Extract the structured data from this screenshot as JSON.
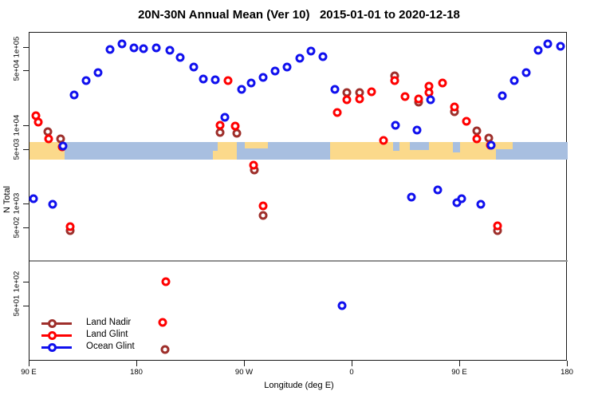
{
  "chart_data": {
    "type": "scatter",
    "title": "20N-30N Annual Mean (Ver 10)   2015-01-01 to 2020-12-18",
    "xlabel": "Longitude (deg E)",
    "ylabel": "N Total",
    "x_axis": {
      "range": [
        90,
        540
      ],
      "ticks": [
        {
          "lon": 90,
          "label": "90 E"
        },
        {
          "lon": 180,
          "label": "180"
        },
        {
          "lon": 270,
          "label": "90 W"
        },
        {
          "lon": 360,
          "label": "0"
        },
        {
          "lon": 450,
          "label": "90 E"
        },
        {
          "lon": 540,
          "label": "180"
        }
      ]
    },
    "y_axis": {
      "scale": "log",
      "range": [
        9.8,
        156000
      ],
      "ticks": [
        {
          "value": 100000,
          "label": "1e+05"
        },
        {
          "value": 50000,
          "label": "5e+04"
        },
        {
          "value": 10000,
          "label": "1e+04"
        },
        {
          "value": 5000,
          "label": "5e+03"
        },
        {
          "value": 1000,
          "label": "1e+03"
        },
        {
          "value": 500,
          "label": "5e+02"
        },
        {
          "value": 100,
          "label": "1e+02"
        },
        {
          "value": 50,
          "label": "5e+01"
        }
      ]
    },
    "separator_value": 193,
    "map_band": {
      "lat_range": "20N-30N",
      "value_top": 6250,
      "value_bottom": 3720,
      "ocean_color": "#A8BFE0",
      "land_color": "#FBD98B",
      "land_patches": [
        {
          "from": 90,
          "to": 119,
          "frac_top": 0,
          "frac_h": 1
        },
        {
          "from": 243,
          "to": 263,
          "frac_top": 0,
          "frac_h": 1
        },
        {
          "from": 270,
          "to": 289,
          "frac_top": 0,
          "frac_h": 0.35
        },
        {
          "from": 341,
          "to": 480,
          "frac_top": 0,
          "frac_h": 1
        },
        {
          "from": 480,
          "to": 494,
          "frac_top": 0,
          "frac_h": 0.4
        }
      ],
      "ocean_notches": [
        {
          "from": 243,
          "to": 247,
          "frac_top": 0,
          "frac_h": 0.5
        },
        {
          "from": 394,
          "to": 399,
          "frac_top": 0,
          "frac_h": 0.5
        },
        {
          "from": 408,
          "to": 424,
          "frac_top": 0,
          "frac_h": 0.45
        },
        {
          "from": 444,
          "to": 450,
          "frac_top": 0,
          "frac_h": 0.6
        }
      ]
    },
    "series": [
      {
        "name": "Land Nadir",
        "color": "#9E2F2B",
        "points": [
          [
            105,
            8500
          ],
          [
            116,
            6900
          ],
          [
            249,
            8300
          ],
          [
            263,
            8100
          ],
          [
            278,
            2750
          ],
          [
            355,
            26500
          ],
          [
            366,
            27000
          ],
          [
            395,
            44000
          ],
          [
            415,
            20400
          ],
          [
            445,
            15200
          ],
          [
            464,
            8700
          ],
          [
            474,
            7000
          ],
          [
            124,
            460
          ],
          [
            285,
            720
          ],
          [
            481,
            460
          ],
          [
            203,
            14
          ]
        ]
      },
      {
        "name": "Land Glint",
        "color": "#FF0000",
        "points": [
          [
            95,
            13600
          ],
          [
            97,
            11300
          ],
          [
            106,
            6900
          ],
          [
            117,
            5400
          ],
          [
            124,
            513
          ],
          [
            201,
            31
          ],
          [
            204,
            103
          ],
          [
            249,
            10200
          ],
          [
            256,
            38000
          ],
          [
            262,
            10000
          ],
          [
            277,
            3170
          ],
          [
            285,
            950
          ],
          [
            347,
            14900
          ],
          [
            355,
            21700
          ],
          [
            366,
            22300
          ],
          [
            376,
            27500
          ],
          [
            386,
            6600
          ],
          [
            395,
            38500
          ],
          [
            404,
            24000
          ],
          [
            415,
            22300
          ],
          [
            424,
            32500
          ],
          [
            424,
            27000
          ],
          [
            435,
            35500
          ],
          [
            445,
            17600
          ],
          [
            455,
            11600
          ],
          [
            464,
            6900
          ],
          [
            475,
            5700
          ],
          [
            481,
            525
          ]
        ]
      },
      {
        "name": "Ocean Glint",
        "color": "#1010EE",
        "points": [
          [
            127,
            25000
          ],
          [
            137,
            38000
          ],
          [
            147,
            48000
          ],
          [
            157,
            95000
          ],
          [
            167,
            112000
          ],
          [
            177,
            100000
          ],
          [
            185,
            98000
          ],
          [
            196,
            100000
          ],
          [
            207,
            93000
          ],
          [
            216,
            75000
          ],
          [
            227,
            57000
          ],
          [
            235,
            40000
          ],
          [
            245,
            39000
          ],
          [
            253,
            13000
          ],
          [
            267,
            29500
          ],
          [
            275,
            35500
          ],
          [
            285,
            42000
          ],
          [
            295,
            50500
          ],
          [
            305,
            57000
          ],
          [
            316,
            74000
          ],
          [
            325,
            91000
          ],
          [
            335,
            77000
          ],
          [
            345,
            29500
          ],
          [
            396,
            10200
          ],
          [
            414,
            8900
          ],
          [
            425,
            21500
          ],
          [
            485,
            24500
          ],
          [
            495,
            38000
          ],
          [
            505,
            48000
          ],
          [
            515,
            93000
          ],
          [
            523,
            112000
          ],
          [
            534,
            104000
          ],
          [
            118,
            5500
          ],
          [
            476,
            5700
          ],
          [
            93,
            1180
          ],
          [
            109,
            1000
          ],
          [
            409,
            1240
          ],
          [
            431,
            1530
          ],
          [
            447,
            1050
          ],
          [
            451,
            1180
          ],
          [
            467,
            1000
          ],
          [
            351,
            51
          ]
        ]
      }
    ],
    "legend": {
      "position": "bottom-left",
      "entries": [
        "Land Nadir",
        "Land Glint",
        "Ocean Glint"
      ]
    }
  }
}
